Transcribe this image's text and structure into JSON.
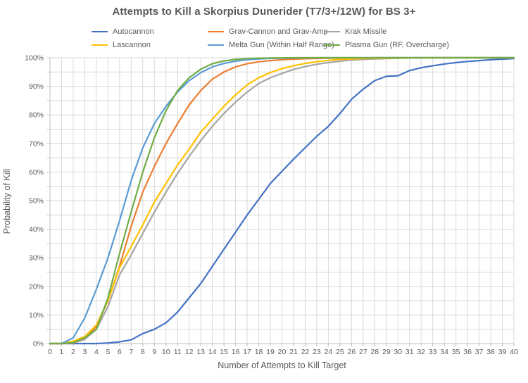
{
  "chart_data": {
    "type": "line",
    "title": "Attempts to Kill a Skorpius Dunerider (T7/3+/12W) for BS 3+",
    "xlabel": "Number of Attempts to Kill Target",
    "ylabel": "Probability of Kill",
    "x_min": 0,
    "x_max": 40,
    "x_tick_step": 1,
    "ylim": [
      0,
      100
    ],
    "y_label_step": 10,
    "y_grid_step": 5,
    "y_tick_suffix": "%",
    "grid": "on",
    "legend_position": "top",
    "x": [
      0,
      1,
      2,
      3,
      4,
      5,
      6,
      7,
      8,
      9,
      10,
      11,
      12,
      13,
      14,
      15,
      16,
      17,
      18,
      19,
      20,
      21,
      22,
      23,
      24,
      25,
      26,
      27,
      28,
      29,
      30,
      31,
      32,
      33,
      34,
      35,
      36,
      37,
      38,
      39,
      40
    ],
    "series": [
      {
        "name": "Autocannon",
        "color": "#4472C4",
        "values": [
          0,
          0,
          0,
          0,
          0,
          0.2,
          0.6,
          1.3,
          3.5,
          5,
          7.3,
          11,
          16,
          21,
          27,
          33,
          39,
          45,
          50.5,
          56,
          60.3,
          64.5,
          68.5,
          72.5,
          76,
          80.5,
          85.5,
          89,
          92,
          93.5,
          93.7,
          95.5,
          96.5,
          97.2,
          97.8,
          98.3,
          98.7,
          99,
          99.3,
          99.5,
          99.7
        ]
      },
      {
        "name": "Grav-Cannon and Grav-Amp",
        "color": "#ED7D31",
        "values": [
          0,
          0,
          0.2,
          1.5,
          6,
          15,
          27,
          41,
          53,
          62,
          70,
          77,
          83.5,
          88.5,
          92.5,
          95,
          96.8,
          97.9,
          98.6,
          99,
          99.3,
          99.5,
          99.65,
          99.75,
          99.85,
          99.9,
          99.9,
          99.95,
          100,
          100,
          100,
          100,
          100,
          100,
          100,
          100,
          100,
          100,
          100,
          100,
          100
        ]
      },
      {
        "name": "Krak Missile",
        "color": "#A5A5A5",
        "values": [
          0,
          0,
          0.3,
          1.5,
          5,
          13,
          24,
          31,
          38.5,
          46,
          53,
          59.5,
          65.5,
          71,
          76,
          80.5,
          84.5,
          88,
          91,
          93,
          94.5,
          95.9,
          96.9,
          97.7,
          98.3,
          98.8,
          99.2,
          99.4,
          99.6,
          99.7,
          99.8,
          99.9,
          99.95,
          100,
          100,
          100,
          100,
          100,
          100,
          100,
          100
        ]
      },
      {
        "name": "Lascannon",
        "color": "#FFC000",
        "values": [
          0,
          0,
          0.8,
          2.5,
          6.5,
          15,
          26.5,
          34,
          41.5,
          49.5,
          56,
          62.5,
          68,
          74,
          78.5,
          83,
          87,
          90.5,
          93,
          94.8,
          96.2,
          97.2,
          98,
          98.6,
          99.1,
          99.4,
          99.6,
          99.7,
          99.8,
          99.85,
          99.9,
          99.95,
          100,
          100,
          100,
          100,
          100,
          100,
          100,
          100,
          100
        ]
      },
      {
        "name": "Melta Gun (Within Half Range)",
        "color": "#5B9BD5",
        "values": [
          0,
          0,
          2,
          9,
          19,
          30,
          43,
          57,
          68.5,
          77,
          83,
          88,
          92,
          94.8,
          96.8,
          98,
          98.8,
          99.3,
          99.6,
          99.75,
          99.85,
          99.9,
          99.95,
          100,
          100,
          100,
          100,
          100,
          100,
          100,
          100,
          100,
          100,
          100,
          100,
          100,
          100,
          100,
          100,
          100,
          100
        ]
      },
      {
        "name": "Plasma Gun (RF, Overcharge)",
        "color": "#70AD47",
        "values": [
          0,
          0,
          0.3,
          2,
          5,
          16,
          31.5,
          46,
          60,
          72,
          81.5,
          88.5,
          93,
          96,
          97.9,
          98.9,
          99.4,
          99.7,
          99.85,
          99.9,
          99.95,
          100,
          100,
          100,
          100,
          100,
          100,
          100,
          100,
          100,
          100,
          100,
          100,
          100,
          100,
          100,
          100,
          100,
          100,
          100,
          100
        ]
      }
    ],
    "legend_rows": [
      [
        "Autocannon",
        "Grav-Cannon and Grav-Amp",
        "Krak Missile"
      ],
      [
        "Lascannon",
        "Melta Gun (Within Half Range)",
        "Plasma Gun (RF, Overcharge)"
      ]
    ],
    "colors": {
      "grid": "#D9D9D9",
      "axis": "#BFBFBF",
      "tick_text": "#595959",
      "title_text": "#595959",
      "background": "#FFFFFF"
    }
  }
}
